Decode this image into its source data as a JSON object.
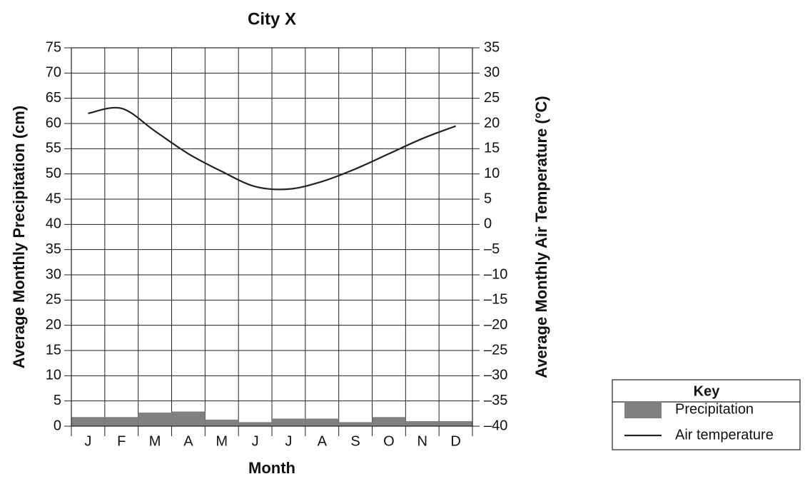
{
  "chart_data": {
    "type": "bar-line",
    "title": "City X",
    "x_label": "Month",
    "y_label": "Average Monthly Precipitation (cm)",
    "y2_label": "Average Monthly Air Temperature (°C)",
    "categories": [
      "J",
      "F",
      "M",
      "A",
      "M",
      "J",
      "J",
      "A",
      "S",
      "O",
      "N",
      "D"
    ],
    "series": [
      {
        "name": "Precipitation",
        "type": "bar",
        "color": "#808080",
        "values": [
          1.8,
          1.8,
          2.7,
          2.9,
          1.3,
          0.8,
          1.5,
          1.5,
          0.8,
          1.8,
          1.0,
          1.0
        ]
      },
      {
        "name": "Air temperature",
        "type": "line",
        "axis": "y2",
        "color": "#222222",
        "values": [
          22,
          23,
          18.5,
          14,
          10.5,
          7.5,
          7,
          8.5,
          11,
          14,
          17,
          19.5
        ]
      }
    ],
    "ylim": [
      0,
      75
    ],
    "yticks": [
      0,
      5,
      10,
      15,
      20,
      25,
      30,
      35,
      40,
      45,
      50,
      55,
      60,
      65,
      70,
      75
    ],
    "y2lim": [
      -40,
      35
    ],
    "y2ticks": [
      {
        "value": -40,
        "label": "–40"
      },
      {
        "value": -35,
        "label": "–35"
      },
      {
        "value": -30,
        "label": "–30"
      },
      {
        "value": -25,
        "label": "–25"
      },
      {
        "value": -20,
        "label": "–20"
      },
      {
        "value": -15,
        "label": "–15"
      },
      {
        "value": -10,
        "label": "–10"
      },
      {
        "value": -5,
        "label": "–5"
      },
      0,
      5,
      10,
      15,
      20,
      25,
      30,
      35
    ],
    "grid": true,
    "legend_title": "Key",
    "legend": "bottom-right"
  }
}
